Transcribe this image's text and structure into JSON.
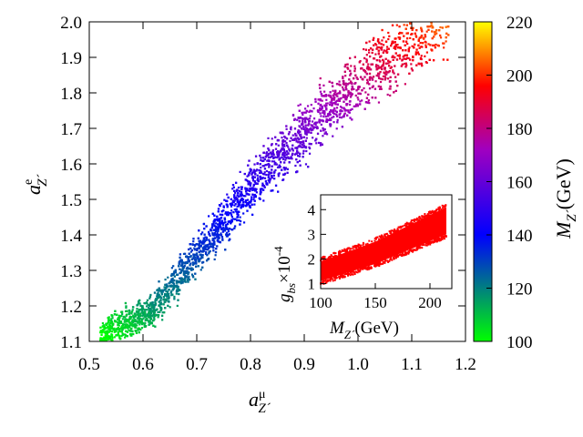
{
  "chart_data": [
    {
      "type": "scatter",
      "title": "",
      "xlabel": {
        "symbol": "a",
        "sup": "μ",
        "sub": "Z´"
      },
      "ylabel": {
        "symbol": "a",
        "sup": "e",
        "sub": "Z´"
      },
      "xlim": [
        0.5,
        1.2
      ],
      "ylim": [
        1.1,
        2.0
      ],
      "xticks": [
        "0.5",
        "0.6",
        "0.7",
        "0.8",
        "0.9",
        "1.0",
        "1.1",
        "1.2"
      ],
      "yticks": [
        "1.1",
        "1.2",
        "1.3",
        "1.4",
        "1.5",
        "1.6",
        "1.7",
        "1.8",
        "1.9",
        "2.0"
      ],
      "grid": false,
      "color_variable": "M_Z´ (GeV)",
      "trend": {
        "description": "scatter band: a_Z´^e rises with a_Z´^mu; color encodes M_Z´",
        "band_center": [
          [
            0.52,
            1.12
          ],
          [
            0.62,
            1.19
          ],
          [
            0.72,
            1.38
          ],
          [
            0.82,
            1.57
          ],
          [
            0.92,
            1.72
          ],
          [
            1.02,
            1.85
          ],
          [
            1.12,
            1.96
          ],
          [
            1.17,
            2.0
          ]
        ],
        "mass_range_along_band": [
          100,
          220
        ]
      },
      "colorbar": {
        "label": {
          "symbol": "M",
          "sub": "Z´",
          "unit": "(GeV)"
        },
        "range": [
          100,
          220
        ],
        "ticks": [
          "100",
          "120",
          "140",
          "160",
          "180",
          "200",
          "220"
        ],
        "colors": [
          "#00ff00",
          "#0000ff",
          "#ff0000",
          "#ffff00"
        ]
      },
      "marker_color": "#ff0000"
    },
    {
      "type": "scatter",
      "role": "inset",
      "xlabel": {
        "symbol": "M",
        "sub": "Z´",
        "unit": "(GeV)"
      },
      "ylabel": {
        "symbol": "g",
        "sub": "bs",
        "times": "×10",
        "exp": "-4"
      },
      "xlim": [
        100,
        220
      ],
      "ylim": [
        0.8,
        4.6
      ],
      "xticks": [
        "100",
        "150",
        "200"
      ],
      "yticks": [
        "1",
        "2",
        "3",
        "4"
      ],
      "band": {
        "x_range": [
          100,
          215
        ],
        "lower_edge": [
          [
            100,
            1.1
          ],
          [
            150,
            1.8
          ],
          [
            215,
            3.0
          ]
        ],
        "upper_edge": [
          [
            100,
            1.9
          ],
          [
            150,
            2.7
          ],
          [
            215,
            4.1
          ]
        ]
      },
      "marker_color": "#ff0000"
    }
  ]
}
